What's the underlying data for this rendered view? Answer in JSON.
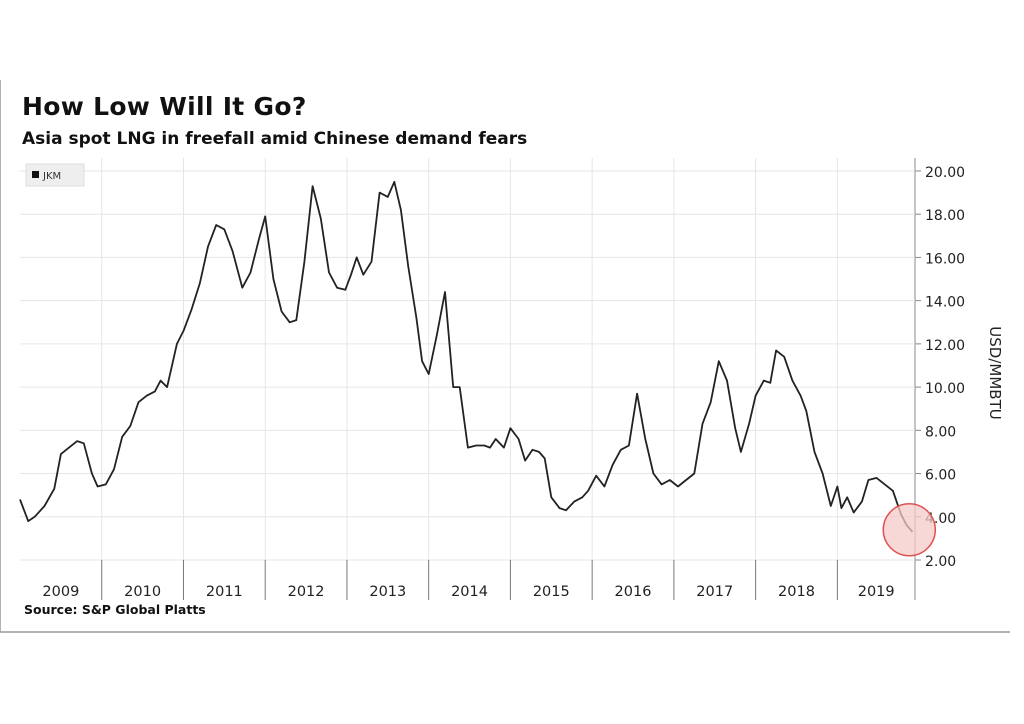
{
  "header": {
    "title": "How Low Will It Go?",
    "subtitle": "Asia spot LNG in freefall amid Chinese demand fears"
  },
  "footer": {
    "source": "Source: S&P Global Platts"
  },
  "colors": {
    "line": "#222222",
    "grid": "#e6e6e6",
    "highlight_fill": "#f6c9c9",
    "highlight_stroke": "#e05050"
  },
  "chart_data": {
    "type": "line",
    "title": "How Low Will It Go?",
    "subtitle": "Asia spot LNG in freefall amid Chinese demand fears",
    "ylabel": "USD/MMBTU",
    "ylim": [
      2,
      20.6
    ],
    "xlim": [
      2009.0,
      2019.95
    ],
    "yticks": [
      "20.00",
      "18.00",
      "16.00",
      "14.00",
      "12.00",
      "10.00",
      "8.00",
      "6.00",
      "4.00",
      "2.00"
    ],
    "ytick_values": [
      20,
      18,
      16,
      14,
      12,
      10,
      8,
      6,
      4,
      2
    ],
    "xticks": [
      "2009",
      "2010",
      "2011",
      "2012",
      "2013",
      "2014",
      "2015",
      "2016",
      "2017",
      "2018",
      "2019"
    ],
    "legend": [
      "JKM"
    ],
    "legend_position": "top-left",
    "grid": true,
    "highlight": {
      "x": 2019.88,
      "y": 3.4
    },
    "series": [
      {
        "name": "JKM",
        "x": [
          2009.0,
          2009.1,
          2009.18,
          2009.3,
          2009.42,
          2009.5,
          2009.6,
          2009.7,
          2009.78,
          2009.88,
          2009.95,
          2010.05,
          2010.15,
          2010.25,
          2010.35,
          2010.45,
          2010.55,
          2010.65,
          2010.72,
          2010.8,
          2010.92,
          2011.0,
          2011.1,
          2011.2,
          2011.3,
          2011.4,
          2011.5,
          2011.6,
          2011.72,
          2011.82,
          2011.92,
          2012.0,
          2012.1,
          2012.2,
          2012.3,
          2012.38,
          2012.48,
          2012.58,
          2012.68,
          2012.78,
          2012.88,
          2012.98,
          2013.05,
          2013.12,
          2013.2,
          2013.3,
          2013.4,
          2013.5,
          2013.58,
          2013.66,
          2013.75,
          2013.85,
          2013.92,
          2014.0,
          2014.1,
          2014.2,
          2014.3,
          2014.38,
          2014.48,
          2014.58,
          2014.68,
          2014.75,
          2014.82,
          2014.92,
          2015.0,
          2015.1,
          2015.18,
          2015.27,
          2015.35,
          2015.42,
          2015.5,
          2015.6,
          2015.68,
          2015.78,
          2015.88,
          2015.95,
          2016.05,
          2016.15,
          2016.25,
          2016.35,
          2016.45,
          2016.55,
          2016.65,
          2016.75,
          2016.85,
          2016.95,
          2017.05,
          2017.15,
          2017.25,
          2017.35,
          2017.45,
          2017.55,
          2017.65,
          2017.75,
          2017.82,
          2017.92,
          2018.0,
          2018.1,
          2018.18,
          2018.25,
          2018.35,
          2018.45,
          2018.55,
          2018.62,
          2018.72,
          2018.82,
          2018.92,
          2019.0,
          2019.05,
          2019.12,
          2019.2,
          2019.3,
          2019.38,
          2019.48,
          2019.58,
          2019.68,
          2019.78,
          2019.85,
          2019.92
        ],
        "y": [
          4.8,
          3.8,
          4.0,
          4.5,
          5.3,
          6.9,
          7.2,
          7.5,
          7.4,
          6.0,
          5.4,
          5.5,
          6.2,
          7.7,
          8.2,
          9.3,
          9.6,
          9.8,
          10.3,
          10.0,
          12.0,
          12.6,
          13.6,
          14.8,
          16.5,
          17.5,
          17.3,
          16.3,
          14.6,
          15.3,
          16.8,
          17.9,
          15.0,
          13.5,
          13.0,
          13.1,
          15.8,
          19.3,
          17.8,
          15.3,
          14.6,
          14.5,
          15.2,
          16.0,
          15.2,
          15.8,
          19.0,
          18.8,
          19.5,
          18.2,
          15.6,
          13.2,
          11.2,
          10.6,
          12.4,
          14.4,
          10.0,
          10.0,
          7.2,
          7.3,
          7.3,
          7.2,
          7.6,
          7.2,
          8.1,
          7.6,
          6.6,
          7.1,
          7.0,
          6.7,
          4.9,
          4.4,
          4.3,
          4.7,
          4.9,
          5.2,
          5.9,
          5.4,
          6.4,
          7.1,
          7.3,
          9.7,
          7.6,
          6.0,
          5.5,
          5.7,
          5.4,
          5.7,
          6.0,
          8.3,
          9.3,
          11.2,
          10.3,
          8.1,
          7.0,
          8.3,
          9.6,
          10.3,
          10.2,
          11.7,
          11.4,
          10.3,
          9.6,
          8.9,
          7.0,
          6.0,
          4.5,
          5.4,
          4.4,
          4.9,
          4.2,
          4.7,
          5.7,
          5.8,
          5.5,
          5.2,
          4.1,
          3.6,
          3.3
        ]
      }
    ]
  }
}
